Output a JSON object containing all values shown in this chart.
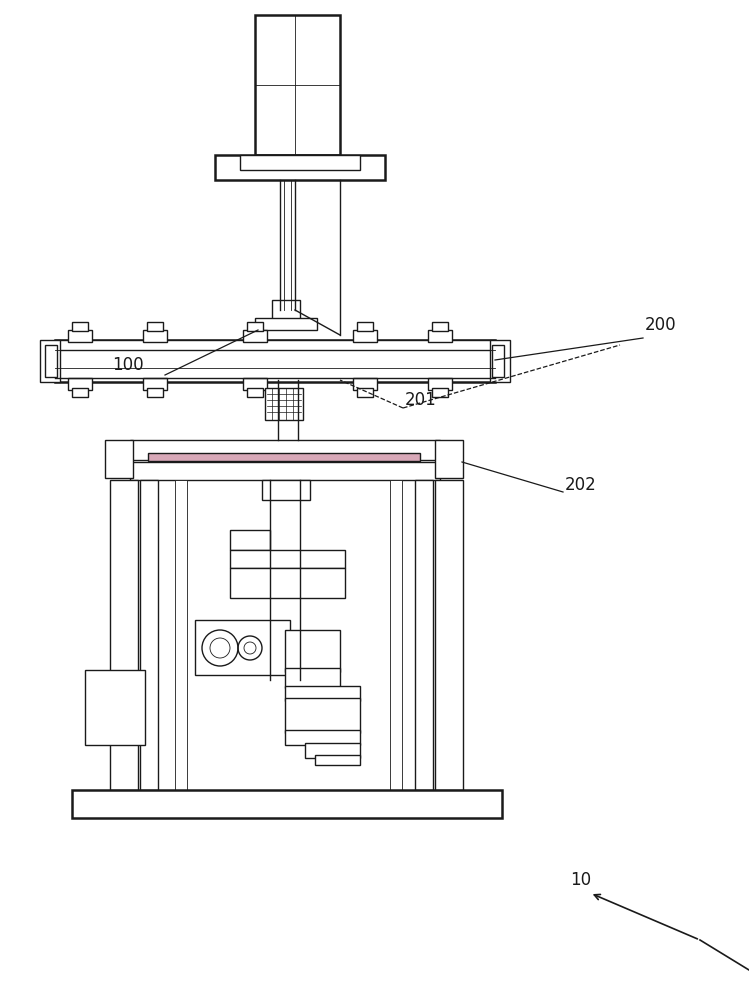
{
  "bg_color": "#ffffff",
  "line_color": "#1a1a1a",
  "lw": 1.0,
  "lw_thick": 1.8,
  "lw_thin": 0.6,
  "label_fontsize": 12,
  "pink_color": "#d8a8b8"
}
